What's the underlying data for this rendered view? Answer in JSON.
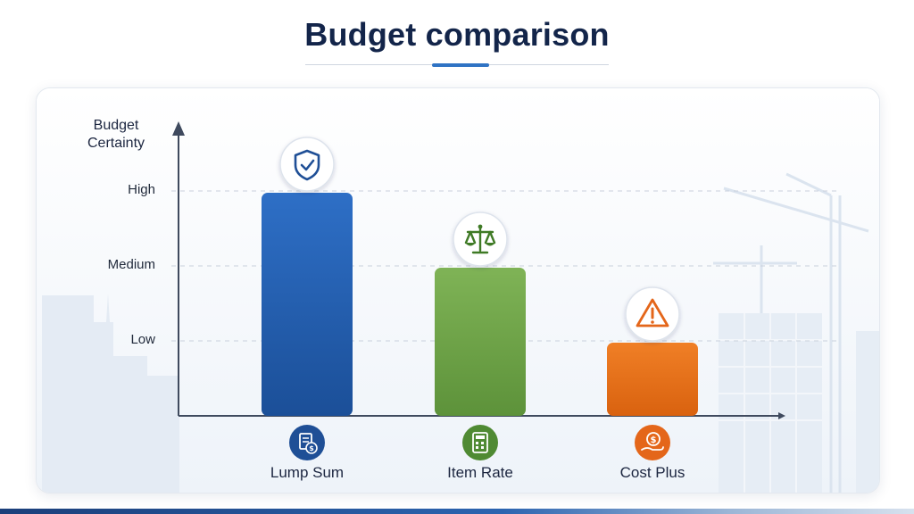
{
  "title": "Budget comparison",
  "colors": {
    "title": "#13254a",
    "accent": "#2f73c4",
    "lump_sum": "#2563b8",
    "item_rate": "#74a84a",
    "cost_plus": "#e8731b"
  },
  "chart_data": {
    "type": "bar",
    "title": "Budget comparison",
    "ylabel": [
      "Budget",
      "Certainty"
    ],
    "xlabel": "",
    "y_ticks": [
      "Low",
      "Medium",
      "High"
    ],
    "ylim": [
      0,
      3
    ],
    "grid": "dashed horizontal",
    "categories": [
      "Lump Sum",
      "Item Rate",
      "Cost Plus"
    ],
    "values": [
      3,
      2,
      1
    ],
    "value_labels": [
      "High",
      "Medium",
      "Low"
    ],
    "bar_icons": [
      "shield-check-icon",
      "balance-scale-icon",
      "warning-triangle-icon"
    ],
    "category_icons": [
      "document-dollar-icon",
      "calculator-icon",
      "hand-coin-icon"
    ]
  }
}
